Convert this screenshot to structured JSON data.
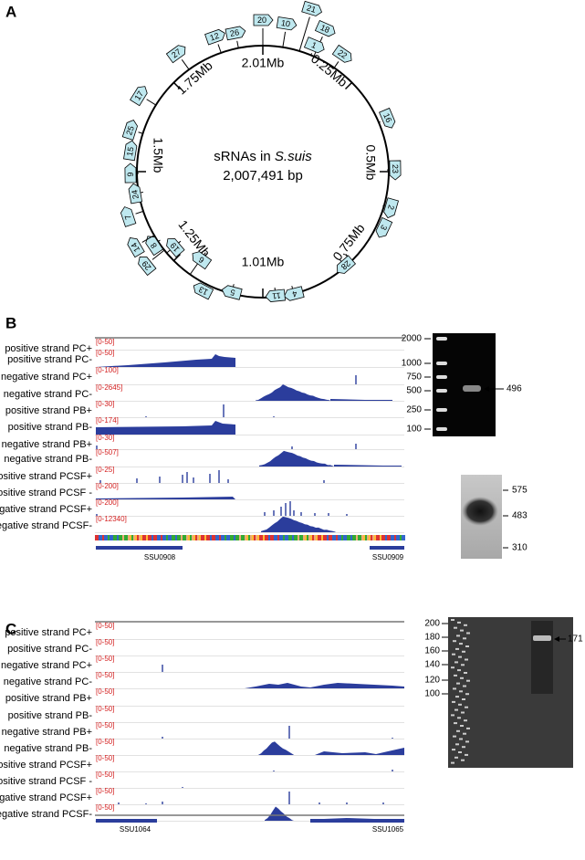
{
  "panel_a": {
    "label": "A",
    "center_title": "sRNAs in",
    "center_species": "S.suis",
    "center_size": "2,007,491 bp",
    "scale_labels": [
      "2.01Mb",
      "0.25Mb",
      "0.5Mb",
      "0.75Mb",
      "1.01Mb",
      "1.25Mb",
      "1.5Mb",
      "1.75Mb"
    ],
    "srnas": [
      "12",
      "26",
      "20",
      "10",
      "21",
      "18",
      "1",
      "22",
      "27",
      "17",
      "16",
      "23",
      "2",
      "3",
      "28",
      "4",
      "11",
      "5",
      "13",
      "6",
      "19",
      "8",
      "14",
      "29",
      "7",
      "24",
      "9",
      "15",
      "25"
    ]
  },
  "panel_b": {
    "label": "B",
    "tracks": [
      {
        "name": "positive strand PC+",
        "range": "[0-50]"
      },
      {
        "name": "positive strand PC-",
        "range": "[0-50]"
      },
      {
        "name": "negative strand PC+",
        "range": "[0-100]"
      },
      {
        "name": "negative strand PC-",
        "range": "[0-2645]"
      },
      {
        "name": "positive strand PB+",
        "range": "[0-30]"
      },
      {
        "name": "positive strand PB-",
        "range": "[0-174]"
      },
      {
        "name": "negative strand PB+",
        "range": "[0-30]"
      },
      {
        "name": "negative strand PB-",
        "range": "[0-507]"
      },
      {
        "name": "positive strand PCSF+",
        "range": "[0-25]"
      },
      {
        "name": "positive strand PCSF -",
        "range": "[0-200]"
      },
      {
        "name": "negative strand PCSF+",
        "range": "[0-200]"
      },
      {
        "name": "negative strand PCSF-",
        "range": "[0-12340]"
      }
    ],
    "genes": [
      "SSU0908",
      "SSU0909"
    ],
    "gel_ladder": [
      "2000",
      "1000",
      "750",
      "500",
      "250",
      "100"
    ],
    "gel_band": "496",
    "northern_markers": [
      "575",
      "483",
      "310"
    ]
  },
  "panel_c": {
    "label": "C",
    "tracks": [
      {
        "name": "positive strand PC+",
        "range": "[0-50]"
      },
      {
        "name": "positive strand PC-",
        "range": "[0-50]"
      },
      {
        "name": "negative strand PC+",
        "range": "[0-50]"
      },
      {
        "name": "negative strand PC-",
        "range": "[0-50]"
      },
      {
        "name": "positive strand PB+",
        "range": "[0-50]"
      },
      {
        "name": "positive strand PB-",
        "range": "[0-50]"
      },
      {
        "name": "negative strand PB+",
        "range": "[0-50]"
      },
      {
        "name": "negative strand PB-",
        "range": "[0-50]"
      },
      {
        "name": "positive strand PCSF+",
        "range": "[0-50]"
      },
      {
        "name": "positive strand PCSF -",
        "range": "[0-50]"
      },
      {
        "name": "negative strand PCSF+",
        "range": "[0-50]"
      },
      {
        "name": "negative strand PCSF-",
        "range": "[0-50]"
      }
    ],
    "genes": [
      "SSU1064",
      "SSU1065"
    ],
    "gel_ladder": [
      "200",
      "180",
      "160",
      "140",
      "120",
      "100"
    ],
    "gel_band": "171"
  }
}
